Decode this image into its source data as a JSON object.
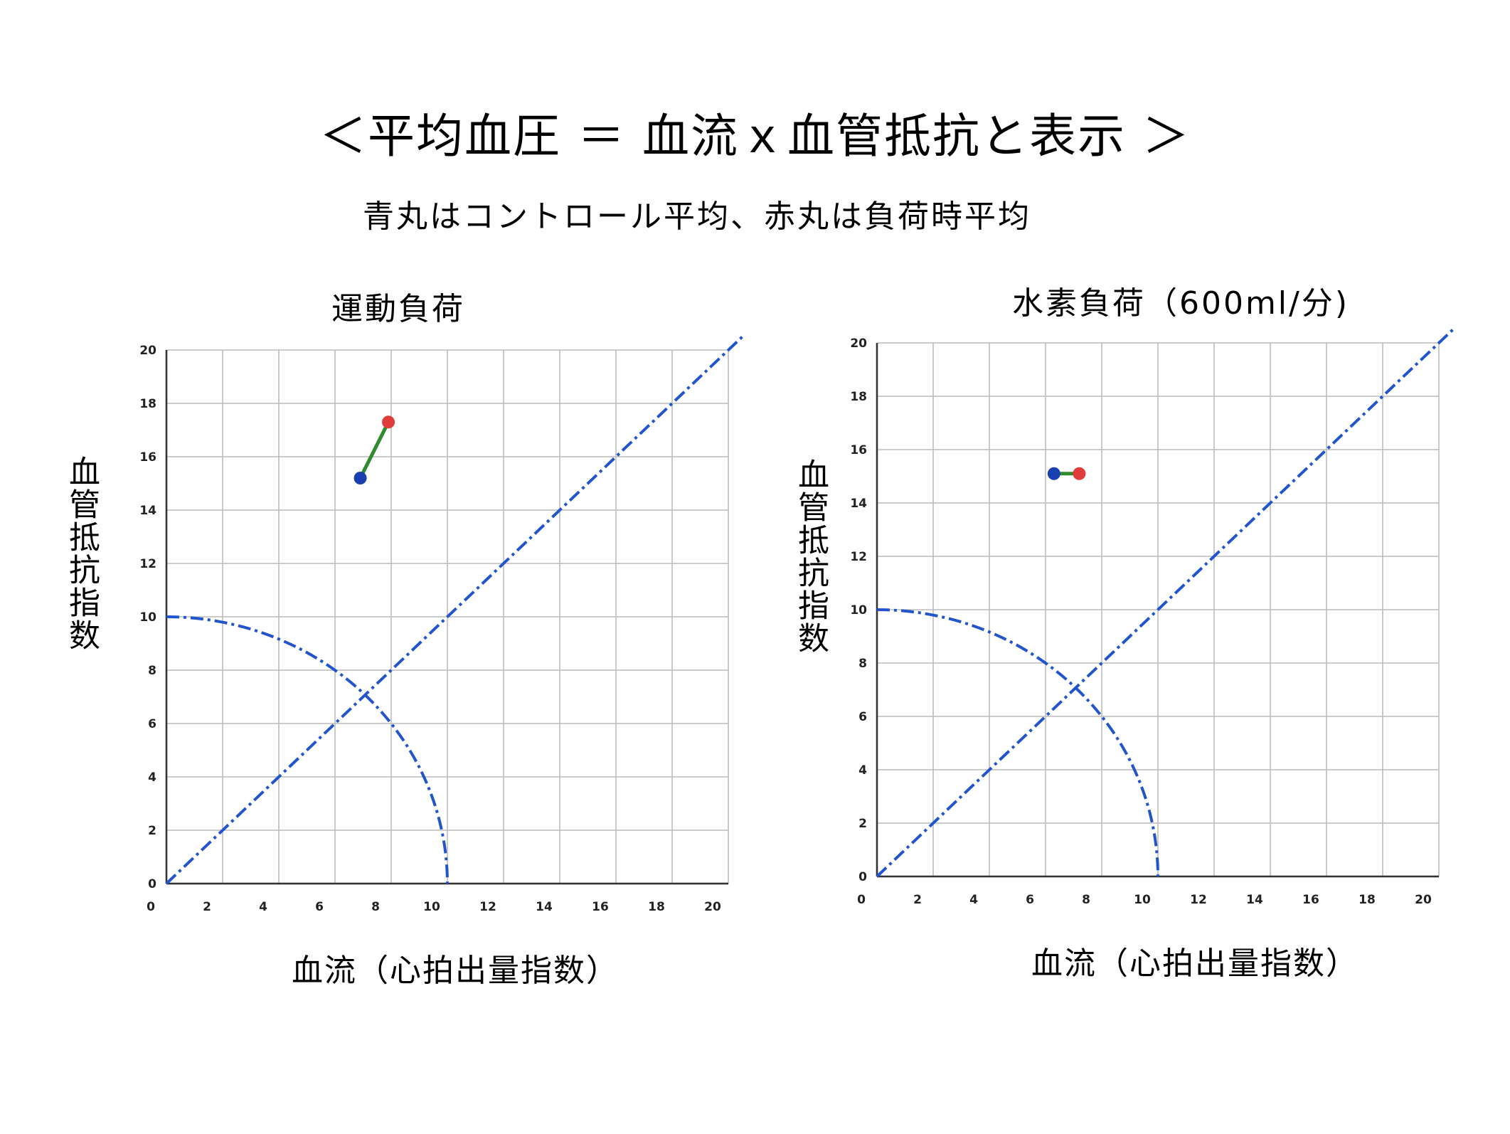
{
  "title": "＜平均血圧 ＝ 血流ｘ血管抵抗と表示 ＞",
  "subtitle": "青丸はコントロール平均、赤丸は負荷時平均",
  "colors": {
    "control": "#1a3fb0",
    "load": "#e03c3c",
    "connector": "#2e8b2e",
    "reference": "#2255cc",
    "grid": "#bcbcbc"
  },
  "chart_data": [
    {
      "type": "scatter",
      "title": "運動負荷",
      "xlabel": "血流（心拍出量指数）",
      "ylabel": "血管抵抗指数",
      "xlim": [
        0,
        20
      ],
      "ylim": [
        0,
        20
      ],
      "xticks": [
        "0",
        "2",
        "4",
        "6",
        "8",
        "10",
        "12",
        "14",
        "16",
        "18",
        "20"
      ],
      "yticks": [
        "0",
        "2",
        "4",
        "6",
        "8",
        "10",
        "12",
        "14",
        "16",
        "18",
        "20"
      ],
      "grid": true,
      "reference_lines": [
        "y = x",
        "x² + y² = 10²"
      ],
      "series": [
        {
          "color": "blue",
          "x": 6.9,
          "y": 15.2
        },
        {
          "color": "red",
          "x": 7.9,
          "y": 17.3
        }
      ]
    },
    {
      "type": "scatter",
      "title": "水素負荷（600ml/分)",
      "xlabel": "血流（心拍出量指数）",
      "ylabel": "血管抵抗指数",
      "xlim": [
        0,
        20
      ],
      "ylim": [
        0,
        20
      ],
      "xticks": [
        "0",
        "2",
        "4",
        "6",
        "8",
        "10",
        "12",
        "14",
        "16",
        "18",
        "20"
      ],
      "yticks": [
        "0",
        "2",
        "4",
        "6",
        "8",
        "10",
        "12",
        "14",
        "16",
        "18",
        "20"
      ],
      "grid": true,
      "reference_lines": [
        "y = x",
        "x² + y² = 10²"
      ],
      "series": [
        {
          "color": "blue",
          "x": 6.3,
          "y": 15.1
        },
        {
          "color": "red",
          "x": 7.2,
          "y": 15.1
        }
      ]
    }
  ]
}
